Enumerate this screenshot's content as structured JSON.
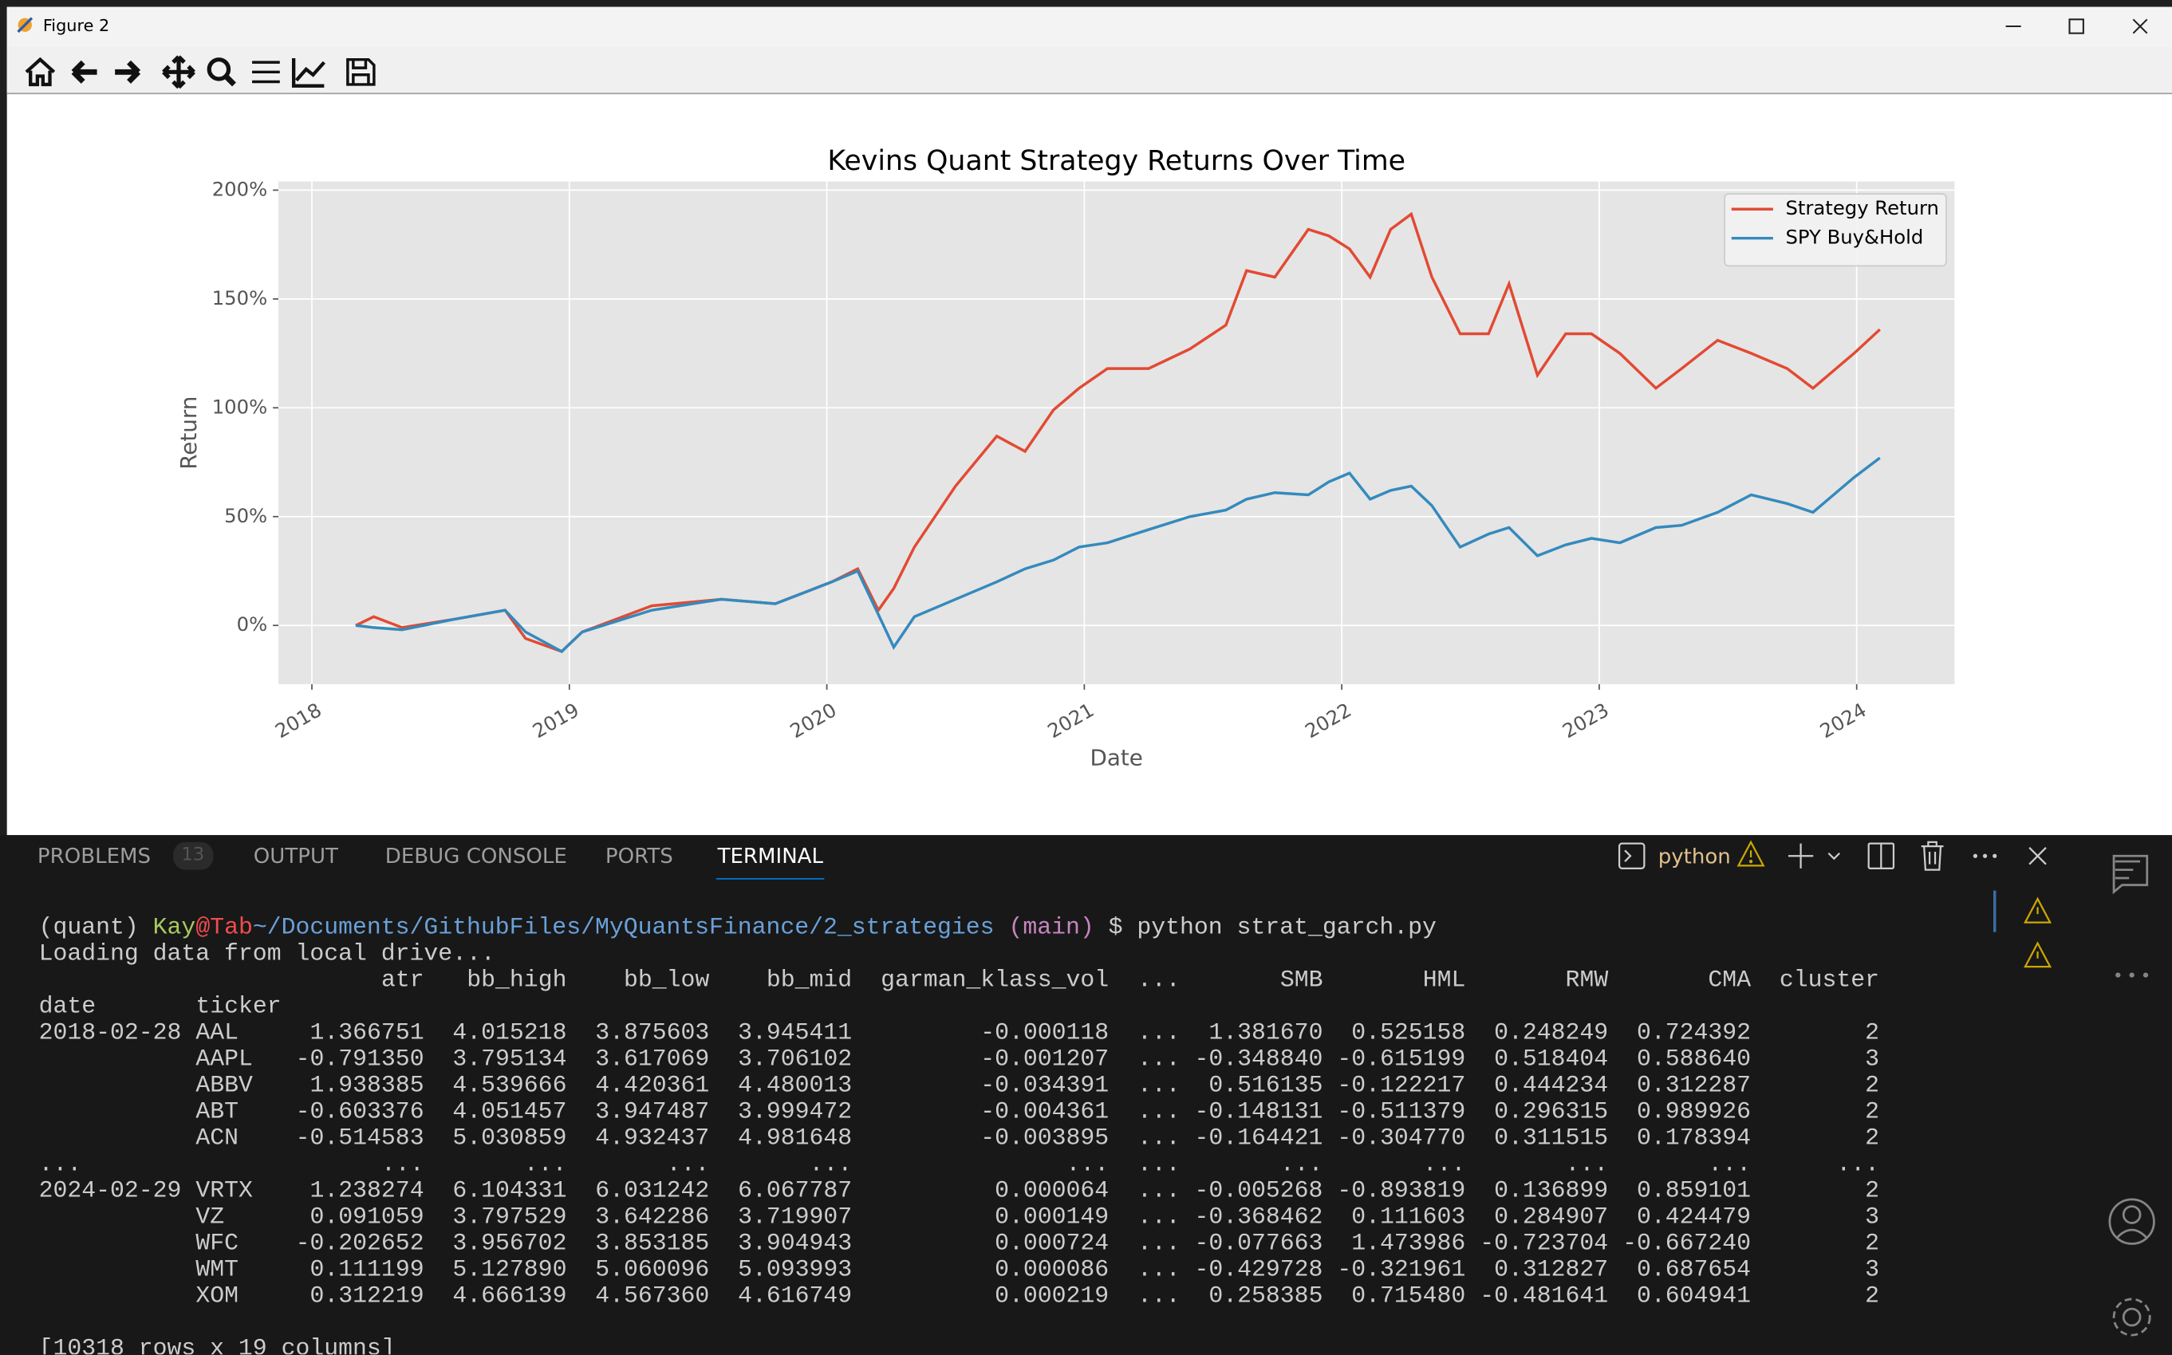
{
  "window": {
    "title": "Figure 2"
  },
  "chart_data": {
    "type": "line",
    "title": "Kevins Quant Strategy Returns Over Time",
    "xlabel": "Date",
    "ylabel": "Return",
    "x": [
      2018.17,
      2018.24,
      2018.35,
      2018.56,
      2018.75,
      2018.83,
      2018.97,
      2019.05,
      2019.32,
      2019.59,
      2019.8,
      2020.02,
      2020.12,
      2020.2,
      2020.26,
      2020.34,
      2020.5,
      2020.66,
      2020.77,
      2020.88,
      2020.98,
      2021.09,
      2021.25,
      2021.41,
      2021.55,
      2021.63,
      2021.74,
      2021.87,
      2021.95,
      2022.03,
      2022.11,
      2022.19,
      2022.27,
      2022.35,
      2022.46,
      2022.57,
      2022.65,
      2022.76,
      2022.87,
      2022.97,
      2023.08,
      2023.22,
      2023.32,
      2023.46,
      2023.59,
      2023.73,
      2023.83,
      2023.99,
      2024.09
    ],
    "series": [
      {
        "name": "Strategy Return",
        "color": "#e24a33",
        "values": [
          0,
          4,
          -1,
          3,
          7,
          -6,
          -12,
          -3,
          9,
          12,
          10,
          20,
          26,
          7,
          17,
          36,
          64,
          87,
          80,
          99,
          109,
          118,
          118,
          127,
          138,
          163,
          160,
          182,
          179,
          173,
          160,
          182,
          189,
          160,
          134,
          134,
          157,
          115,
          134,
          134,
          125,
          109,
          118,
          131,
          125,
          118,
          109,
          125,
          136
        ]
      },
      {
        "name": "SPY Buy&Hold",
        "color": "#348abd",
        "values": [
          0,
          -1,
          -2,
          3,
          7,
          -3,
          -12,
          -3,
          7,
          12,
          10,
          20,
          25,
          5,
          -10,
          4,
          12,
          20,
          26,
          30,
          36,
          38,
          44,
          50,
          53,
          58,
          61,
          60,
          66,
          70,
          58,
          62,
          64,
          55,
          36,
          42,
          45,
          32,
          37,
          40,
          38,
          45,
          46,
          52,
          60,
          56,
          52,
          68,
          77
        ]
      }
    ],
    "xlim": [
      2017.87,
      2024.38
    ],
    "xticks": [
      2018,
      2019,
      2020,
      2021,
      2022,
      2023,
      2024
    ],
    "ylim": [
      -27,
      204
    ],
    "yticks": [
      {
        "value": 0,
        "label": "0%"
      },
      {
        "value": 50,
        "label": "50%"
      },
      {
        "value": 100,
        "label": "100%"
      },
      {
        "value": 150,
        "label": "150%"
      },
      {
        "value": 200,
        "label": "200%"
      }
    ],
    "grid": true,
    "legend": "upper right"
  },
  "panel": {
    "tabs": [
      "PROBLEMS",
      "OUTPUT",
      "DEBUG CONSOLE",
      "PORTS",
      "TERMINAL"
    ],
    "problems_count": "13",
    "active_tab": "TERMINAL",
    "terminal_name": "python"
  },
  "terminal": {
    "prompt": {
      "env": "(quant)",
      "user": "Kay",
      "host": "@Tab",
      "path": "~/Documents/GithubFiles/MyQuantsFinance/2_strategies",
      "branch": "(main)",
      "command": "$ python strat_garch.py"
    },
    "message": "Loading data from local drive...",
    "table": {
      "columns": [
        "atr",
        "bb_high",
        "bb_low",
        "bb_mid",
        "garman_klass_vol",
        "...",
        "SMB",
        "HML",
        "RMW",
        "CMA",
        "cluster"
      ],
      "index_names": [
        "date",
        "ticker"
      ],
      "rows": [
        {
          "date": "2018-02-28",
          "ticker": "AAL",
          "cells": [
            "1.366751",
            "4.015218",
            "3.875603",
            "3.945411",
            "-0.000118",
            "...",
            "1.381670",
            "0.525158",
            "0.248249",
            "0.724392",
            "2"
          ]
        },
        {
          "ticker": "AAPL",
          "cells": [
            "-0.791350",
            "3.795134",
            "3.617069",
            "3.706102",
            "-0.001207",
            "...",
            "-0.348840",
            "-0.615199",
            "0.518404",
            "0.588640",
            "3"
          ]
        },
        {
          "ticker": "ABBV",
          "cells": [
            "1.938385",
            "4.539666",
            "4.420361",
            "4.480013",
            "-0.034391",
            "...",
            "0.516135",
            "-0.122217",
            "0.444234",
            "0.312287",
            "2"
          ]
        },
        {
          "ticker": "ABT",
          "cells": [
            "-0.603376",
            "4.051457",
            "3.947487",
            "3.999472",
            "-0.004361",
            "...",
            "-0.148131",
            "-0.511379",
            "0.296315",
            "0.989926",
            "2"
          ]
        },
        {
          "ticker": "ACN",
          "cells": [
            "-0.514583",
            "5.030859",
            "4.932437",
            "4.981648",
            "-0.003895",
            "...",
            "-0.164421",
            "-0.304770",
            "0.311515",
            "0.178394",
            "2"
          ]
        },
        {
          "date": "...",
          "cells": [
            "...",
            "...",
            "...",
            "...",
            "...",
            "...",
            "...",
            "...",
            "...",
            "...",
            "..."
          ]
        },
        {
          "date": "2024-02-29",
          "ticker": "VRTX",
          "cells": [
            "1.238274",
            "6.104331",
            "6.031242",
            "6.067787",
            "0.000064",
            "...",
            "-0.005268",
            "-0.893819",
            "0.136899",
            "0.859101",
            "2"
          ]
        },
        {
          "ticker": "VZ",
          "cells": [
            "0.091059",
            "3.797529",
            "3.642286",
            "3.719907",
            "0.000149",
            "...",
            "-0.368462",
            "0.111603",
            "0.284907",
            "0.424479",
            "3"
          ]
        },
        {
          "ticker": "WFC",
          "cells": [
            "-0.202652",
            "3.956702",
            "3.853185",
            "3.904943",
            "0.000724",
            "...",
            "-0.077663",
            "1.473986",
            "-0.723704",
            "-0.667240",
            "2"
          ]
        },
        {
          "ticker": "WMT",
          "cells": [
            "0.111199",
            "5.127890",
            "5.060096",
            "5.093993",
            "0.000086",
            "...",
            "-0.429728",
            "-0.321961",
            "0.312827",
            "0.687654",
            "3"
          ]
        },
        {
          "ticker": "XOM",
          "cells": [
            "0.312219",
            "4.666139",
            "4.567360",
            "4.616749",
            "0.000219",
            "...",
            "0.258385",
            "0.715480",
            "-0.481641",
            "0.604941",
            "2"
          ]
        }
      ]
    },
    "footer": "[10318 rows x 19 columns]"
  }
}
